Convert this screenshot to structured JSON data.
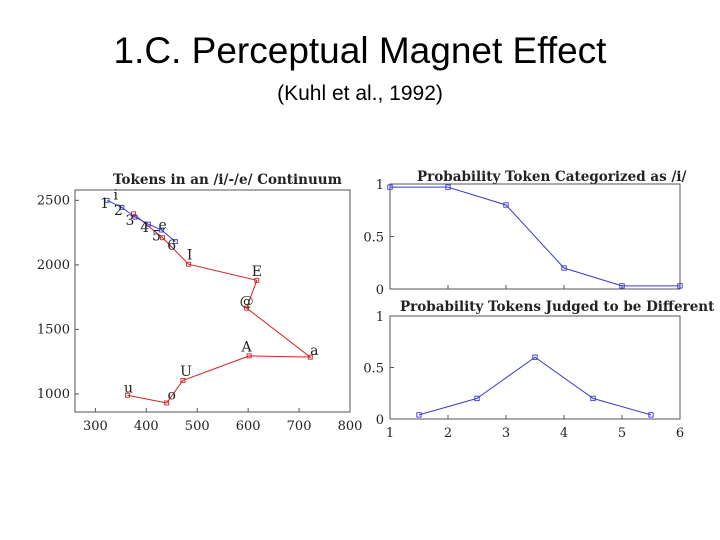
{
  "slide": {
    "title": "1.C. Perceptual Magnet Effect",
    "subtitle": "(Kuhl et al., 1992)"
  },
  "colors": {
    "line_red": "#d02020",
    "line_blue": "#3a3ad0",
    "axis": "#333333"
  },
  "chart_data": [
    {
      "type": "line",
      "title": "Tokens in an /i/-/e/ Continuum",
      "xlim": [
        260,
        800
      ],
      "ylim": [
        860,
        2580
      ],
      "xticks": [
        300,
        400,
        500,
        600,
        700,
        800
      ],
      "yticks": [
        1000,
        1500,
        2000,
        2500
      ],
      "series": [
        {
          "color": "#d02020",
          "points": [
            {
              "x": 375,
              "y": 2395
            },
            {
              "x": 432,
              "y": 2210
            },
            {
              "x": 483,
              "y": 2005
            },
            {
              "x": 617,
              "y": 1880
            },
            {
              "x": 597,
              "y": 1665
            },
            {
              "x": 722,
              "y": 1285
            },
            {
              "x": 602,
              "y": 1295
            },
            {
              "x": 472,
              "y": 1105
            },
            {
              "x": 440,
              "y": 930
            },
            {
              "x": 363,
              "y": 990
            }
          ]
        },
        {
          "color": "#3a3ad0",
          "points": [
            {
              "x": 323,
              "y": 2500
            },
            {
              "x": 352,
              "y": 2445
            },
            {
              "x": 378,
              "y": 2370
            },
            {
              "x": 404,
              "y": 2315
            },
            {
              "x": 430,
              "y": 2270
            },
            {
              "x": 457,
              "y": 2180
            }
          ]
        }
      ],
      "point_labels": [
        {
          "text": "1",
          "x": 318,
          "y": 2440
        },
        {
          "text": "i",
          "x": 340,
          "y": 2508
        },
        {
          "text": "2",
          "x": 345,
          "y": 2385
        },
        {
          "text": "3",
          "x": 368,
          "y": 2310
        },
        {
          "text": "4",
          "x": 397,
          "y": 2255
        },
        {
          "text": "e",
          "x": 432,
          "y": 2275
        },
        {
          "text": "5",
          "x": 420,
          "y": 2190
        },
        {
          "text": "6",
          "x": 450,
          "y": 2115
        },
        {
          "text": "I",
          "x": 485,
          "y": 2040
        },
        {
          "text": "E",
          "x": 617,
          "y": 1915
        },
        {
          "text": "@",
          "x": 597,
          "y": 1685
        },
        {
          "text": "A",
          "x": 597,
          "y": 1330
        },
        {
          "text": "a",
          "x": 730,
          "y": 1300
        },
        {
          "text": "U",
          "x": 478,
          "y": 1140
        },
        {
          "text": "u",
          "x": 365,
          "y": 1010
        },
        {
          "text": "o",
          "x": 450,
          "y": 955
        }
      ]
    },
    {
      "type": "line",
      "title": "Probability Token Categorized as /i/",
      "xlim": [
        1,
        6
      ],
      "ylim": [
        0,
        1
      ],
      "yticks": [
        0,
        0.5,
        1
      ],
      "yticklabels": [
        "0",
        "0.5",
        "1"
      ],
      "series": [
        {
          "color": "#3a3ad0",
          "x": [
            1,
            2,
            3,
            4,
            5,
            6
          ],
          "values": [
            0.97,
            0.97,
            0.8,
            0.2,
            0.03,
            0.03
          ]
        }
      ]
    },
    {
      "type": "line",
      "title": "Probability Tokens Judged to be Different",
      "xlim": [
        1,
        6
      ],
      "ylim": [
        0,
        1
      ],
      "xticks": [
        1,
        2,
        3,
        4,
        5,
        6
      ],
      "yticks": [
        0,
        0.5,
        1
      ],
      "yticklabels": [
        "0",
        "0.5",
        "1"
      ],
      "series": [
        {
          "color": "#3a3ad0",
          "x": [
            1.5,
            2.5,
            3.5,
            4.5,
            5.5
          ],
          "values": [
            0.04,
            0.2,
            0.6,
            0.2,
            0.04
          ]
        }
      ]
    }
  ]
}
